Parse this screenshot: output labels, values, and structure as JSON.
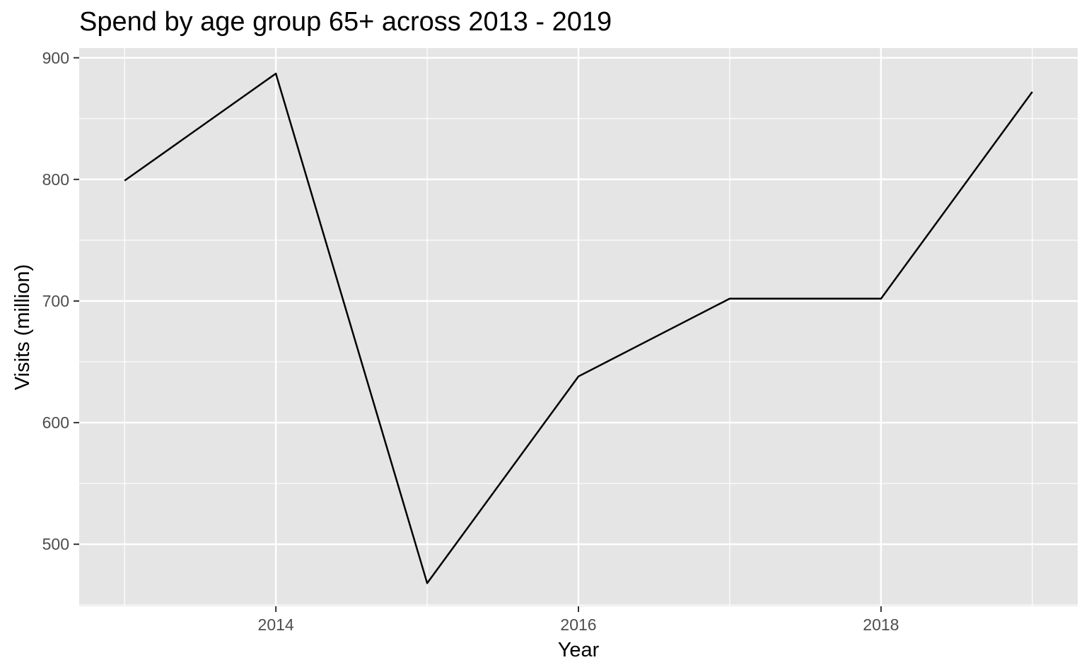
{
  "chart_data": {
    "type": "line",
    "title": "Spend by age group 65+ across 2013 - 2019",
    "xlabel": "Year",
    "ylabel": "Visits (million)",
    "x": [
      2013,
      2014,
      2015,
      2016,
      2017,
      2018,
      2019
    ],
    "y": [
      799,
      887,
      468,
      638,
      702,
      702,
      872
    ],
    "xlim": [
      2012.7,
      2019.3
    ],
    "ylim": [
      449,
      908
    ],
    "x_ticks": [
      2014,
      2016,
      2018
    ],
    "x_tick_labels": [
      "2014",
      "2016",
      "2018"
    ],
    "y_ticks": [
      500,
      600,
      700,
      800,
      900
    ],
    "y_tick_labels": [
      "500",
      "600",
      "700",
      "800",
      "900"
    ],
    "grid": true,
    "colors": {
      "panel_background": "#e5e5e5",
      "grid": "#ffffff",
      "line": "#000000",
      "tick_text": "#4d4d4d",
      "tick_mark": "#333333"
    }
  }
}
